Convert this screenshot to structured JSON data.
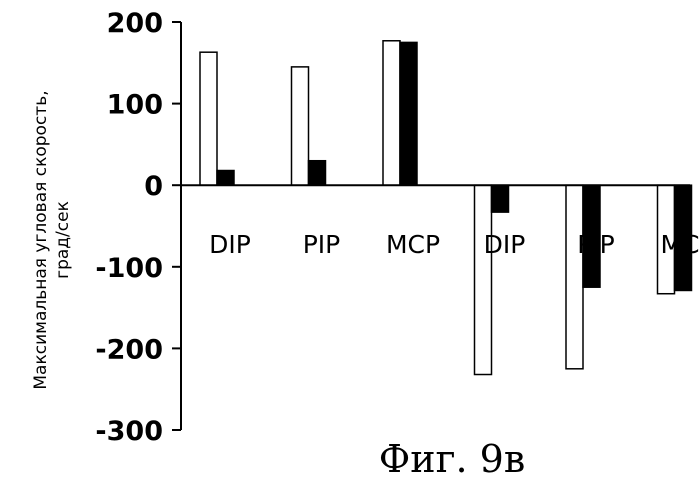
{
  "chart_data": {
    "type": "bar",
    "categories": [
      "DIP",
      "PIP",
      "MCP",
      "DIP",
      "PIP",
      "MCP"
    ],
    "series": [
      {
        "values": [
          163,
          145,
          177,
          -232,
          -225,
          -133
        ],
        "color": "#ffffff"
      },
      {
        "values": [
          18,
          30,
          175,
          -33,
          -125,
          -129
        ],
        "color": "#000000"
      }
    ],
    "ylabel": [
      "Максимальная угловая скорость,",
      "град/сек"
    ],
    "ylim": [
      -300,
      200
    ],
    "yticks": [
      200,
      100,
      0,
      -100,
      -200,
      -300
    ],
    "grid": false,
    "legend": "none"
  },
  "caption": "Фиг. 9в"
}
